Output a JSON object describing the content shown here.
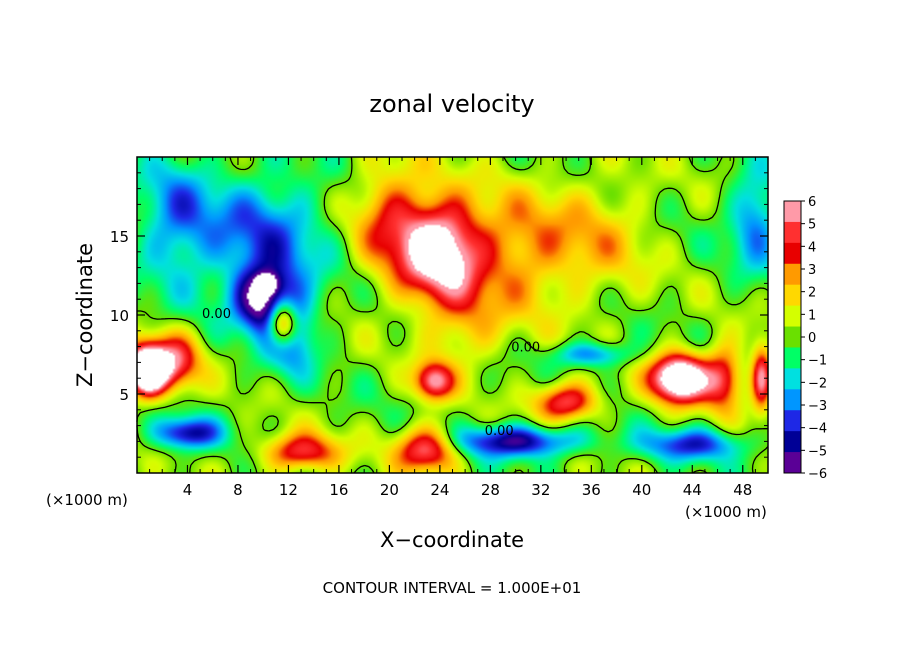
{
  "chart_data": {
    "type": "heatmap",
    "title": "zonal velocity",
    "xlabel": "X−coordinate",
    "ylabel": "Z−coordinate",
    "x_unit_left": "(×1000 m)",
    "x_unit_right": "(×1000 m)",
    "xlim": [
      0,
      50
    ],
    "ylim": [
      0,
      20
    ],
    "x_ticks": [
      4,
      8,
      12,
      16,
      20,
      24,
      28,
      32,
      36,
      40,
      44,
      48
    ],
    "y_ticks": [
      5,
      10,
      15
    ],
    "colorbar": {
      "levels": [
        6,
        5,
        4,
        3,
        2,
        1,
        0,
        -1,
        -2,
        -3,
        -4,
        -5,
        -6
      ],
      "labels": [
        "6",
        "5",
        "4",
        "3",
        "2",
        "1",
        "0",
        "−1",
        "−2",
        "−3",
        "−4",
        "−5",
        "−6"
      ],
      "colors": [
        "#ff9aa8",
        "#ff3030",
        "#e80000",
        "#ff9a00",
        "#ffd800",
        "#d4ff00",
        "#6ae000",
        "#00ff66",
        "#00e0e0",
        "#0096ff",
        "#1e28e6",
        "#000096",
        "#5a0096"
      ]
    },
    "contour_label": "0.00",
    "contour_labels_shown": [
      "0.00",
      "0.00",
      "0.00"
    ],
    "footer": "CONTOUR INTERVAL = 1.000E+01",
    "field_features": [
      {
        "x": 24,
        "z": 14,
        "u": 7.5,
        "sx": 3.0,
        "sz": 3.2
      },
      {
        "x": 20,
        "z": 16,
        "u": 3.5,
        "sx": 3.0,
        "sz": 4.0
      },
      {
        "x": 30,
        "z": 14,
        "u": 3.2,
        "sx": 5.0,
        "sz": 4.0
      },
      {
        "x": 26,
        "z": 9,
        "u": 2.0,
        "sx": 3.0,
        "sz": 2.5
      },
      {
        "x": 37,
        "z": 15,
        "u": 1.8,
        "sx": 4.0,
        "sz": 4.0
      },
      {
        "x": 10,
        "z": 15,
        "u": -3.5,
        "sx": 5.0,
        "sz": 4.0
      },
      {
        "x": 3,
        "z": 16,
        "u": -3.0,
        "sx": 3.0,
        "sz": 4.0
      },
      {
        "x": 10,
        "z": 11,
        "u": -6.5,
        "sx": 2.2,
        "sz": 2.0
      },
      {
        "x": 12,
        "z": 9,
        "u": -4.5,
        "sx": 2.0,
        "sz": 2.5
      },
      {
        "x": 11.5,
        "z": 9.5,
        "u": 8.5,
        "sx": 1.2,
        "sz": 1.5
      },
      {
        "x": 10.3,
        "z": 12,
        "u": -3.5,
        "sx": 0.8,
        "sz": 0.6
      },
      {
        "x": 49,
        "z": 16,
        "u": -3.5,
        "sx": 2.0,
        "sz": 3.0
      },
      {
        "x": 0.8,
        "z": 6.5,
        "u": 12,
        "sx": 1.5,
        "sz": 1.5
      },
      {
        "x": 3,
        "z": 7,
        "u": 5.0,
        "sx": 2.0,
        "sz": 1.8
      },
      {
        "x": 4,
        "z": 2.5,
        "u": -5.0,
        "sx": 2.5,
        "sz": 1.0
      },
      {
        "x": 13,
        "z": 1.3,
        "u": 5.0,
        "sx": 3.0,
        "sz": 1.2
      },
      {
        "x": 23,
        "z": 1.5,
        "u": 6.0,
        "sx": 2.5,
        "sz": 1.4
      },
      {
        "x": 30,
        "z": 2,
        "u": -5.5,
        "sx": 5.0,
        "sz": 1.0
      },
      {
        "x": 43,
        "z": 6,
        "u": 10.0,
        "sx": 2.2,
        "sz": 1.5
      },
      {
        "x": 46.5,
        "z": 6,
        "u": 5.0,
        "sx": 1.5,
        "sz": 2.0
      },
      {
        "x": 36,
        "z": 7.5,
        "u": -3.5,
        "sx": 3.0,
        "sz": 0.8
      },
      {
        "x": 34,
        "z": 4.5,
        "u": 5.5,
        "sx": 2.5,
        "sz": 1.2
      },
      {
        "x": 23.5,
        "z": 5.8,
        "u": 6.0,
        "sx": 1.5,
        "sz": 1.2
      },
      {
        "x": 44,
        "z": 1.8,
        "u": -4.0,
        "sx": 4.0,
        "sz": 1.0
      },
      {
        "x": 49.5,
        "z": 6,
        "u": 6.0,
        "sx": 0.8,
        "sz": 2.0
      }
    ]
  }
}
